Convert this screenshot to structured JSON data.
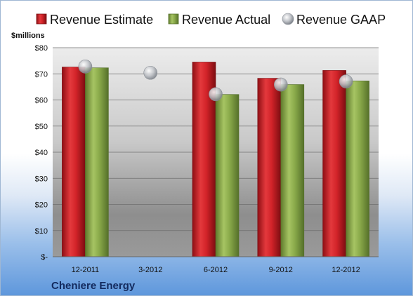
{
  "chart_data": {
    "type": "bar",
    "company": "Cheniere Energy",
    "ylabel": "$millions",
    "categories": [
      "12-2011",
      "3-2012",
      "6-2012",
      "9-2012",
      "12-2012"
    ],
    "ylim": [
      0,
      80
    ],
    "yticks": [
      0,
      10,
      20,
      30,
      40,
      50,
      60,
      70,
      80
    ],
    "ytick_labels": [
      "$-",
      "$10",
      "$20",
      "$30",
      "$40",
      "$50",
      "$60",
      "$70",
      "$80"
    ],
    "series": [
      {
        "name": "Revenue Estimate",
        "kind": "bar",
        "color": "#cc1f24",
        "values": [
          72.6,
          null,
          74.5,
          68.3,
          71.3
        ]
      },
      {
        "name": "Revenue Actual",
        "kind": "bar",
        "color": "#8aaa4a",
        "values": [
          72.3,
          null,
          62.1,
          65.9,
          67.3
        ]
      },
      {
        "name": "Revenue GAAP",
        "kind": "marker",
        "color": "#b9bcc2",
        "values": [
          72.8,
          70.4,
          62.2,
          65.9,
          67.1
        ]
      }
    ],
    "legend_position": "top",
    "grid": true
  }
}
